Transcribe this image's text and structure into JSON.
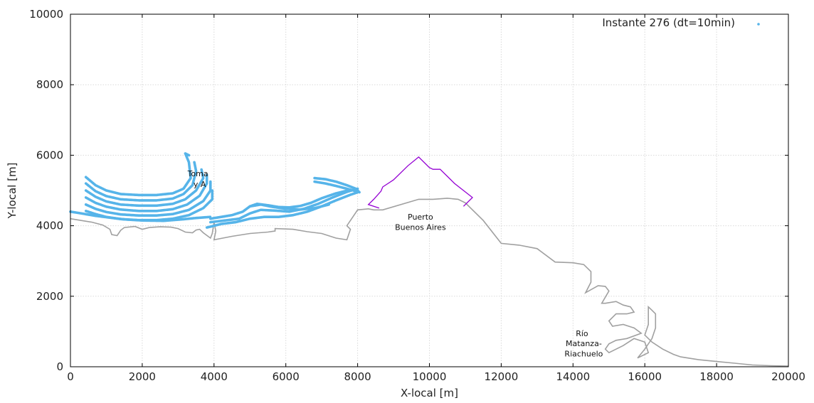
{
  "chart_data": {
    "type": "scatter",
    "title": "",
    "xlabel": "X-local [m]",
    "ylabel": "Y-local [m]",
    "xlim": [
      0,
      20000
    ],
    "ylim": [
      0,
      10000
    ],
    "x_ticks": [
      0,
      2000,
      4000,
      6000,
      8000,
      10000,
      12000,
      14000,
      16000,
      18000,
      20000
    ],
    "y_ticks": [
      0,
      2000,
      4000,
      6000,
      8000,
      10000
    ],
    "grid": true,
    "legend_position": "top-right",
    "colors": {
      "particles": "#56b4e9",
      "coast": "#a0a0a0",
      "port": "#9400d3"
    },
    "series": [
      {
        "name": "Instante 276 (dt=10min)",
        "marker_color": "#56b4e9",
        "plume_curves": [
          [
            [
              430,
              5380
            ],
            [
              700,
              5150
            ],
            [
              1000,
              5000
            ],
            [
              1400,
              4900
            ],
            [
              1900,
              4870
            ],
            [
              2400,
              4870
            ],
            [
              2850,
              4920
            ],
            [
              3150,
              5050
            ],
            [
              3350,
              5350
            ],
            [
              3300,
              5800
            ],
            [
              3200,
              6050
            ],
            [
              3300,
              6000
            ]
          ],
          [
            [
              430,
              5200
            ],
            [
              700,
              4980
            ],
            [
              1000,
              4840
            ],
            [
              1400,
              4750
            ],
            [
              1900,
              4720
            ],
            [
              2400,
              4720
            ],
            [
              2850,
              4770
            ],
            [
              3150,
              4900
            ],
            [
              3400,
              5150
            ],
            [
              3500,
              5550
            ],
            [
              3450,
              5800
            ]
          ],
          [
            [
              430,
              5000
            ],
            [
              700,
              4820
            ],
            [
              1000,
              4690
            ],
            [
              1400,
              4600
            ],
            [
              1900,
              4570
            ],
            [
              2400,
              4570
            ],
            [
              2850,
              4620
            ],
            [
              3200,
              4750
            ],
            [
              3500,
              5000
            ],
            [
              3700,
              5350
            ],
            [
              3650,
              5600
            ]
          ],
          [
            [
              430,
              4800
            ],
            [
              700,
              4650
            ],
            [
              1000,
              4540
            ],
            [
              1400,
              4460
            ],
            [
              1900,
              4420
            ],
            [
              2400,
              4420
            ],
            [
              2850,
              4470
            ],
            [
              3250,
              4600
            ],
            [
              3600,
              4850
            ],
            [
              3800,
              5200
            ],
            [
              3800,
              5450
            ]
          ],
          [
            [
              430,
              4600
            ],
            [
              700,
              4480
            ],
            [
              1000,
              4390
            ],
            [
              1400,
              4320
            ],
            [
              1900,
              4290
            ],
            [
              2400,
              4290
            ],
            [
              2850,
              4330
            ],
            [
              3300,
              4450
            ],
            [
              3700,
              4700
            ],
            [
              3900,
              5000
            ],
            [
              3900,
              5250
            ]
          ],
          [
            [
              430,
              4420
            ],
            [
              700,
              4330
            ],
            [
              1000,
              4250
            ],
            [
              1400,
              4190
            ],
            [
              1900,
              4160
            ],
            [
              2400,
              4160
            ],
            [
              2850,
              4200
            ],
            [
              3300,
              4300
            ],
            [
              3700,
              4500
            ],
            [
              3950,
              4750
            ],
            [
              3950,
              5000
            ]
          ],
          [
            [
              0,
              4400
            ],
            [
              300,
              4350
            ],
            [
              700,
              4280
            ],
            [
              1100,
              4230
            ],
            [
              1500,
              4180
            ],
            [
              2000,
              4150
            ],
            [
              2600,
              4140
            ],
            [
              3100,
              4180
            ],
            [
              3500,
              4220
            ],
            [
              3900,
              4250
            ]
          ],
          [
            [
              3900,
              4200
            ],
            [
              4200,
              4250
            ],
            [
              4500,
              4300
            ],
            [
              4800,
              4400
            ],
            [
              5000,
              4550
            ],
            [
              5200,
              4620
            ],
            [
              5500,
              4580
            ],
            [
              5800,
              4530
            ],
            [
              6100,
              4520
            ],
            [
              6400,
              4560
            ],
            [
              6700,
              4650
            ],
            [
              7000,
              4780
            ],
            [
              7400,
              4920
            ],
            [
              7800,
              5020
            ],
            [
              8000,
              4980
            ]
          ],
          [
            [
              3900,
              4100
            ],
            [
              4300,
              4150
            ],
            [
              4700,
              4200
            ],
            [
              5000,
              4350
            ],
            [
              5300,
              4450
            ],
            [
              5700,
              4430
            ],
            [
              6100,
              4400
            ],
            [
              6500,
              4480
            ],
            [
              6900,
              4620
            ],
            [
              7300,
              4800
            ],
            [
              7700,
              4960
            ],
            [
              8000,
              5050
            ]
          ],
          [
            [
              3800,
              3950
            ],
            [
              4200,
              4050
            ],
            [
              4600,
              4100
            ],
            [
              5000,
              4200
            ],
            [
              5400,
              4250
            ],
            [
              5800,
              4250
            ],
            [
              6200,
              4300
            ],
            [
              6600,
              4400
            ],
            [
              7000,
              4550
            ],
            [
              7400,
              4720
            ],
            [
              7800,
              4880
            ],
            [
              8000,
              4950
            ]
          ],
          [
            [
              6800,
              5350
            ],
            [
              7100,
              5320
            ],
            [
              7400,
              5250
            ],
            [
              7700,
              5150
            ],
            [
              7950,
              5050
            ],
            [
              8050,
              4950
            ]
          ],
          [
            [
              6800,
              5250
            ],
            [
              7100,
              5200
            ],
            [
              7400,
              5130
            ],
            [
              7700,
              5050
            ],
            [
              7950,
              4980
            ]
          ],
          [
            [
              5000,
              4550
            ],
            [
              5300,
              4600
            ],
            [
              5600,
              4540
            ],
            [
              6000,
              4480
            ],
            [
              6400,
              4460
            ],
            [
              6800,
              4500
            ],
            [
              7200,
              4600
            ]
          ]
        ]
      }
    ],
    "coastline_points": [
      [
        0,
        4200
      ],
      [
        300,
        4150
      ],
      [
        600,
        4100
      ],
      [
        900,
        4020
      ],
      [
        1100,
        3900
      ],
      [
        1150,
        3750
      ],
      [
        1300,
        3720
      ],
      [
        1400,
        3870
      ],
      [
        1500,
        3950
      ],
      [
        1800,
        3980
      ],
      [
        2000,
        3900
      ],
      [
        2200,
        3950
      ],
      [
        2500,
        3970
      ],
      [
        2800,
        3960
      ],
      [
        3000,
        3920
      ],
      [
        3200,
        3820
      ],
      [
        3400,
        3800
      ],
      [
        3500,
        3880
      ],
      [
        3600,
        3900
      ],
      [
        3700,
        3800
      ],
      [
        3900,
        3650
      ],
      [
        3950,
        3780
      ],
      [
        4000,
        4100
      ],
      [
        4050,
        3850
      ],
      [
        4000,
        3600
      ],
      [
        4500,
        3700
      ],
      [
        5000,
        3780
      ],
      [
        5500,
        3820
      ],
      [
        5700,
        3850
      ],
      [
        5700,
        3920
      ],
      [
        6200,
        3900
      ],
      [
        6600,
        3830
      ],
      [
        7000,
        3780
      ],
      [
        7400,
        3650
      ],
      [
        7700,
        3600
      ],
      [
        7800,
        3900
      ],
      [
        7700,
        4000
      ],
      [
        8000,
        4450
      ],
      [
        8300,
        4480
      ],
      [
        8450,
        4450
      ],
      [
        8700,
        4450
      ],
      [
        9700,
        4750
      ],
      [
        10100,
        4750
      ],
      [
        10500,
        4780
      ],
      [
        10800,
        4750
      ],
      [
        11000,
        4650
      ],
      [
        11500,
        4150
      ],
      [
        12000,
        3500
      ],
      [
        12500,
        3450
      ],
      [
        13000,
        3350
      ],
      [
        13500,
        2970
      ],
      [
        14000,
        2950
      ],
      [
        14300,
        2900
      ],
      [
        14500,
        2700
      ],
      [
        14500,
        2400
      ],
      [
        14350,
        2100
      ],
      [
        14700,
        2300
      ],
      [
        14900,
        2280
      ],
      [
        15000,
        2150
      ],
      [
        14800,
        1800
      ],
      [
        14900,
        1800
      ],
      [
        15200,
        1850
      ],
      [
        15400,
        1750
      ],
      [
        15600,
        1700
      ],
      [
        15700,
        1550
      ],
      [
        15500,
        1500
      ],
      [
        15200,
        1500
      ],
      [
        15000,
        1300
      ],
      [
        15100,
        1150
      ],
      [
        15400,
        1200
      ],
      [
        15700,
        1100
      ],
      [
        15900,
        950
      ],
      [
        15500,
        800
      ],
      [
        15200,
        750
      ],
      [
        15000,
        650
      ],
      [
        14900,
        500
      ],
      [
        15000,
        400
      ],
      [
        15400,
        600
      ],
      [
        15700,
        800
      ],
      [
        16000,
        700
      ],
      [
        16100,
        400
      ],
      [
        15800,
        250
      ],
      [
        16000,
        500
      ],
      [
        16200,
        800
      ],
      [
        16300,
        1100
      ],
      [
        16300,
        1500
      ],
      [
        16200,
        1600
      ],
      [
        16100,
        1700
      ],
      [
        16100,
        1200
      ],
      [
        16000,
        900
      ],
      [
        16200,
        700
      ],
      [
        16500,
        500
      ],
      [
        16800,
        350
      ],
      [
        17000,
        280
      ],
      [
        17500,
        200
      ],
      [
        18000,
        150
      ],
      [
        18500,
        100
      ],
      [
        19000,
        50
      ],
      [
        19500,
        30
      ],
      [
        20000,
        20
      ]
    ],
    "port_boundary": [
      [
        8600,
        4500
      ],
      [
        8300,
        4600
      ],
      [
        8450,
        4750
      ],
      [
        8650,
        4980
      ],
      [
        8700,
        5100
      ],
      [
        9000,
        5300
      ],
      [
        9400,
        5700
      ],
      [
        9700,
        5950
      ],
      [
        10000,
        5650
      ],
      [
        10100,
        5600
      ],
      [
        10300,
        5600
      ],
      [
        10700,
        5200
      ],
      [
        11200,
        4800
      ],
      [
        10950,
        4550
      ]
    ],
    "annotations": [
      {
        "text": "Toma",
        "x": 3550,
        "y": 5400
      },
      {
        "text": "y A",
        "x": 3600,
        "y": 5100
      },
      {
        "text": "Puerto",
        "x": 9750,
        "y": 4170
      },
      {
        "text": "Buenos Aires",
        "x": 9750,
        "y": 3880
      },
      {
        "text": "Río",
        "x": 14250,
        "y": 870
      },
      {
        "text": "Matanza-",
        "x": 14300,
        "y": 580
      },
      {
        "text": "Riachuelo",
        "x": 14300,
        "y": 290
      }
    ]
  }
}
